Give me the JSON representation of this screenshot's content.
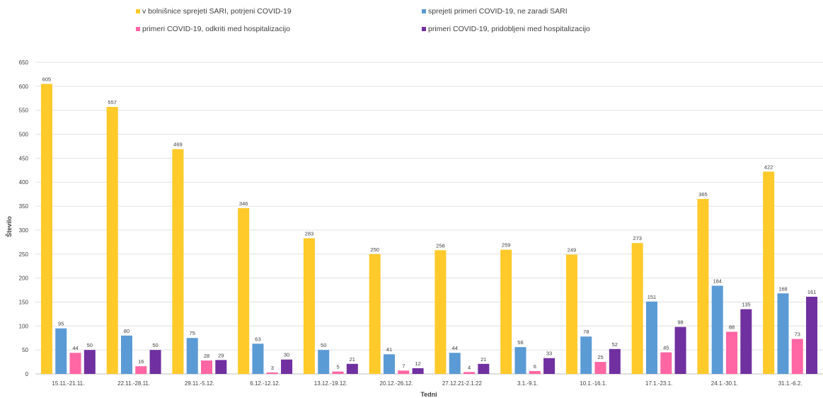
{
  "chart_data": {
    "type": "bar",
    "xlabel": "Tedni",
    "ylabel": "Število",
    "ylim": [
      0,
      650
    ],
    "ytick_step": 50,
    "grid": true,
    "legend_position": "top",
    "categories": [
      "15.11.-21.11.",
      "22.11.-28.11.",
      "29.11.-5.12.",
      "6.12.-12.12.",
      "13.12.-19.12.",
      "20.12.-26.12.",
      "27.12.21-2.1.22",
      "3.1.-9.1.",
      "10.1.-16.1.",
      "17.1.-23.1.",
      "24.1.-30.1.",
      "31.1.-6.2."
    ],
    "series": [
      {
        "name": "v bolnišnice sprejeti SARI, potrjeni COVID-19",
        "color": "#FFCA2A",
        "values": [
          605,
          557,
          469,
          346,
          283,
          250,
          258,
          259,
          249,
          273,
          365,
          422
        ]
      },
      {
        "name": "sprejeti primeri COVID-19, ne zaradi SARI",
        "color": "#5B9BD5",
        "values": [
          95,
          80,
          75,
          63,
          50,
          41,
          44,
          56,
          78,
          151,
          184,
          168
        ]
      },
      {
        "name": "primeri COVID-19, odkriti med hospitalizacijo",
        "color": "#FF66A3",
        "values": [
          44,
          16,
          28,
          3,
          5,
          7,
          4,
          6,
          25,
          45,
          88,
          73
        ]
      },
      {
        "name": "primeri COVID-19, pridobljeni med hospitalizacijo",
        "color": "#7030A0",
        "values": [
          50,
          50,
          29,
          30,
          21,
          12,
          21,
          33,
          52,
          98,
          135,
          161
        ]
      }
    ]
  }
}
